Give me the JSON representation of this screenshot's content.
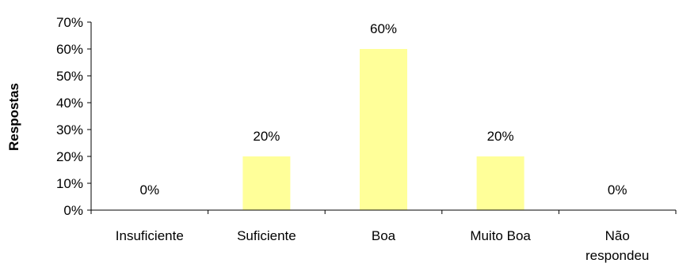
{
  "chart_data": {
    "type": "bar",
    "categories": [
      "Insuficiente",
      "Suficiente",
      "Boa",
      "Muito Boa",
      "Não respondeu"
    ],
    "values": [
      0,
      20,
      60,
      20,
      0
    ],
    "data_labels": [
      "0%",
      "20%",
      "60%",
      "20%",
      "0%"
    ],
    "title": "",
    "xlabel": "",
    "ylabel": "Respostas",
    "ylim": [
      0,
      70
    ],
    "yticks": [
      0,
      10,
      20,
      30,
      40,
      50,
      60,
      70
    ],
    "ytick_labels": [
      "0%",
      "10%",
      "20%",
      "30%",
      "40%",
      "50%",
      "60%",
      "70%"
    ],
    "grid": false,
    "legend": "none",
    "bar_color": "#ffff99"
  }
}
